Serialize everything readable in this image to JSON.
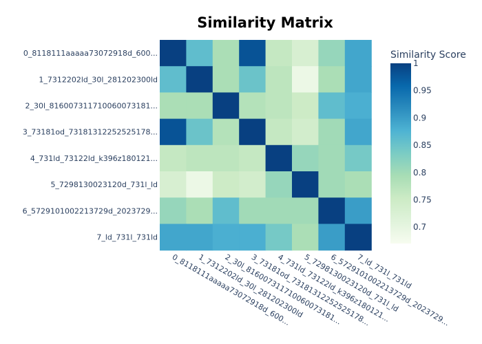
{
  "chart_data": {
    "type": "heatmap",
    "title": "Similarity Matrix",
    "labels": [
      "0_8118111aaaaa73072918d_600...",
      "1_7312202ld_30l_281202300ld",
      "2_30l_816007311710060073181...",
      "3_73181od_73181312252525178...",
      "4_731ld_73122ld_k396z180121...",
      "5_7298130023120d_731l_ld",
      "6_5729101002213729d_2023729...",
      "7_ld_731l_731ld"
    ],
    "z": [
      [
        1.0,
        0.86,
        0.79,
        0.98,
        0.76,
        0.73,
        0.81,
        0.89
      ],
      [
        0.86,
        1.0,
        0.79,
        0.85,
        0.77,
        0.69,
        0.79,
        0.89
      ],
      [
        0.79,
        0.79,
        1.0,
        0.78,
        0.77,
        0.75,
        0.86,
        0.88
      ],
      [
        0.98,
        0.85,
        0.78,
        1.0,
        0.76,
        0.74,
        0.8,
        0.89
      ],
      [
        0.76,
        0.77,
        0.77,
        0.76,
        1.0,
        0.81,
        0.8,
        0.84
      ],
      [
        0.73,
        0.69,
        0.75,
        0.74,
        0.81,
        1.0,
        0.8,
        0.79
      ],
      [
        0.81,
        0.79,
        0.86,
        0.8,
        0.8,
        0.8,
        1.0,
        0.9
      ],
      [
        0.89,
        0.89,
        0.88,
        0.88,
        0.84,
        0.79,
        0.9,
        1.0
      ]
    ],
    "colorbar": {
      "title": "Similarity Score",
      "range": [
        0.67,
        1.0
      ],
      "ticks": [
        1,
        0.95,
        0.9,
        0.85,
        0.8,
        0.75,
        0.7
      ],
      "tick_labels": [
        "1",
        "0.95",
        "0.9",
        "0.85",
        "0.8",
        "0.75",
        "0.7"
      ]
    },
    "colorscale": "GnBu",
    "colorscale_stops": [
      "#f7fcf0",
      "#e0f3db",
      "#ccebc5",
      "#a8ddb5",
      "#7bccc4",
      "#4eb3d3",
      "#2b8cbe",
      "#0868ac",
      "#084081"
    ]
  }
}
